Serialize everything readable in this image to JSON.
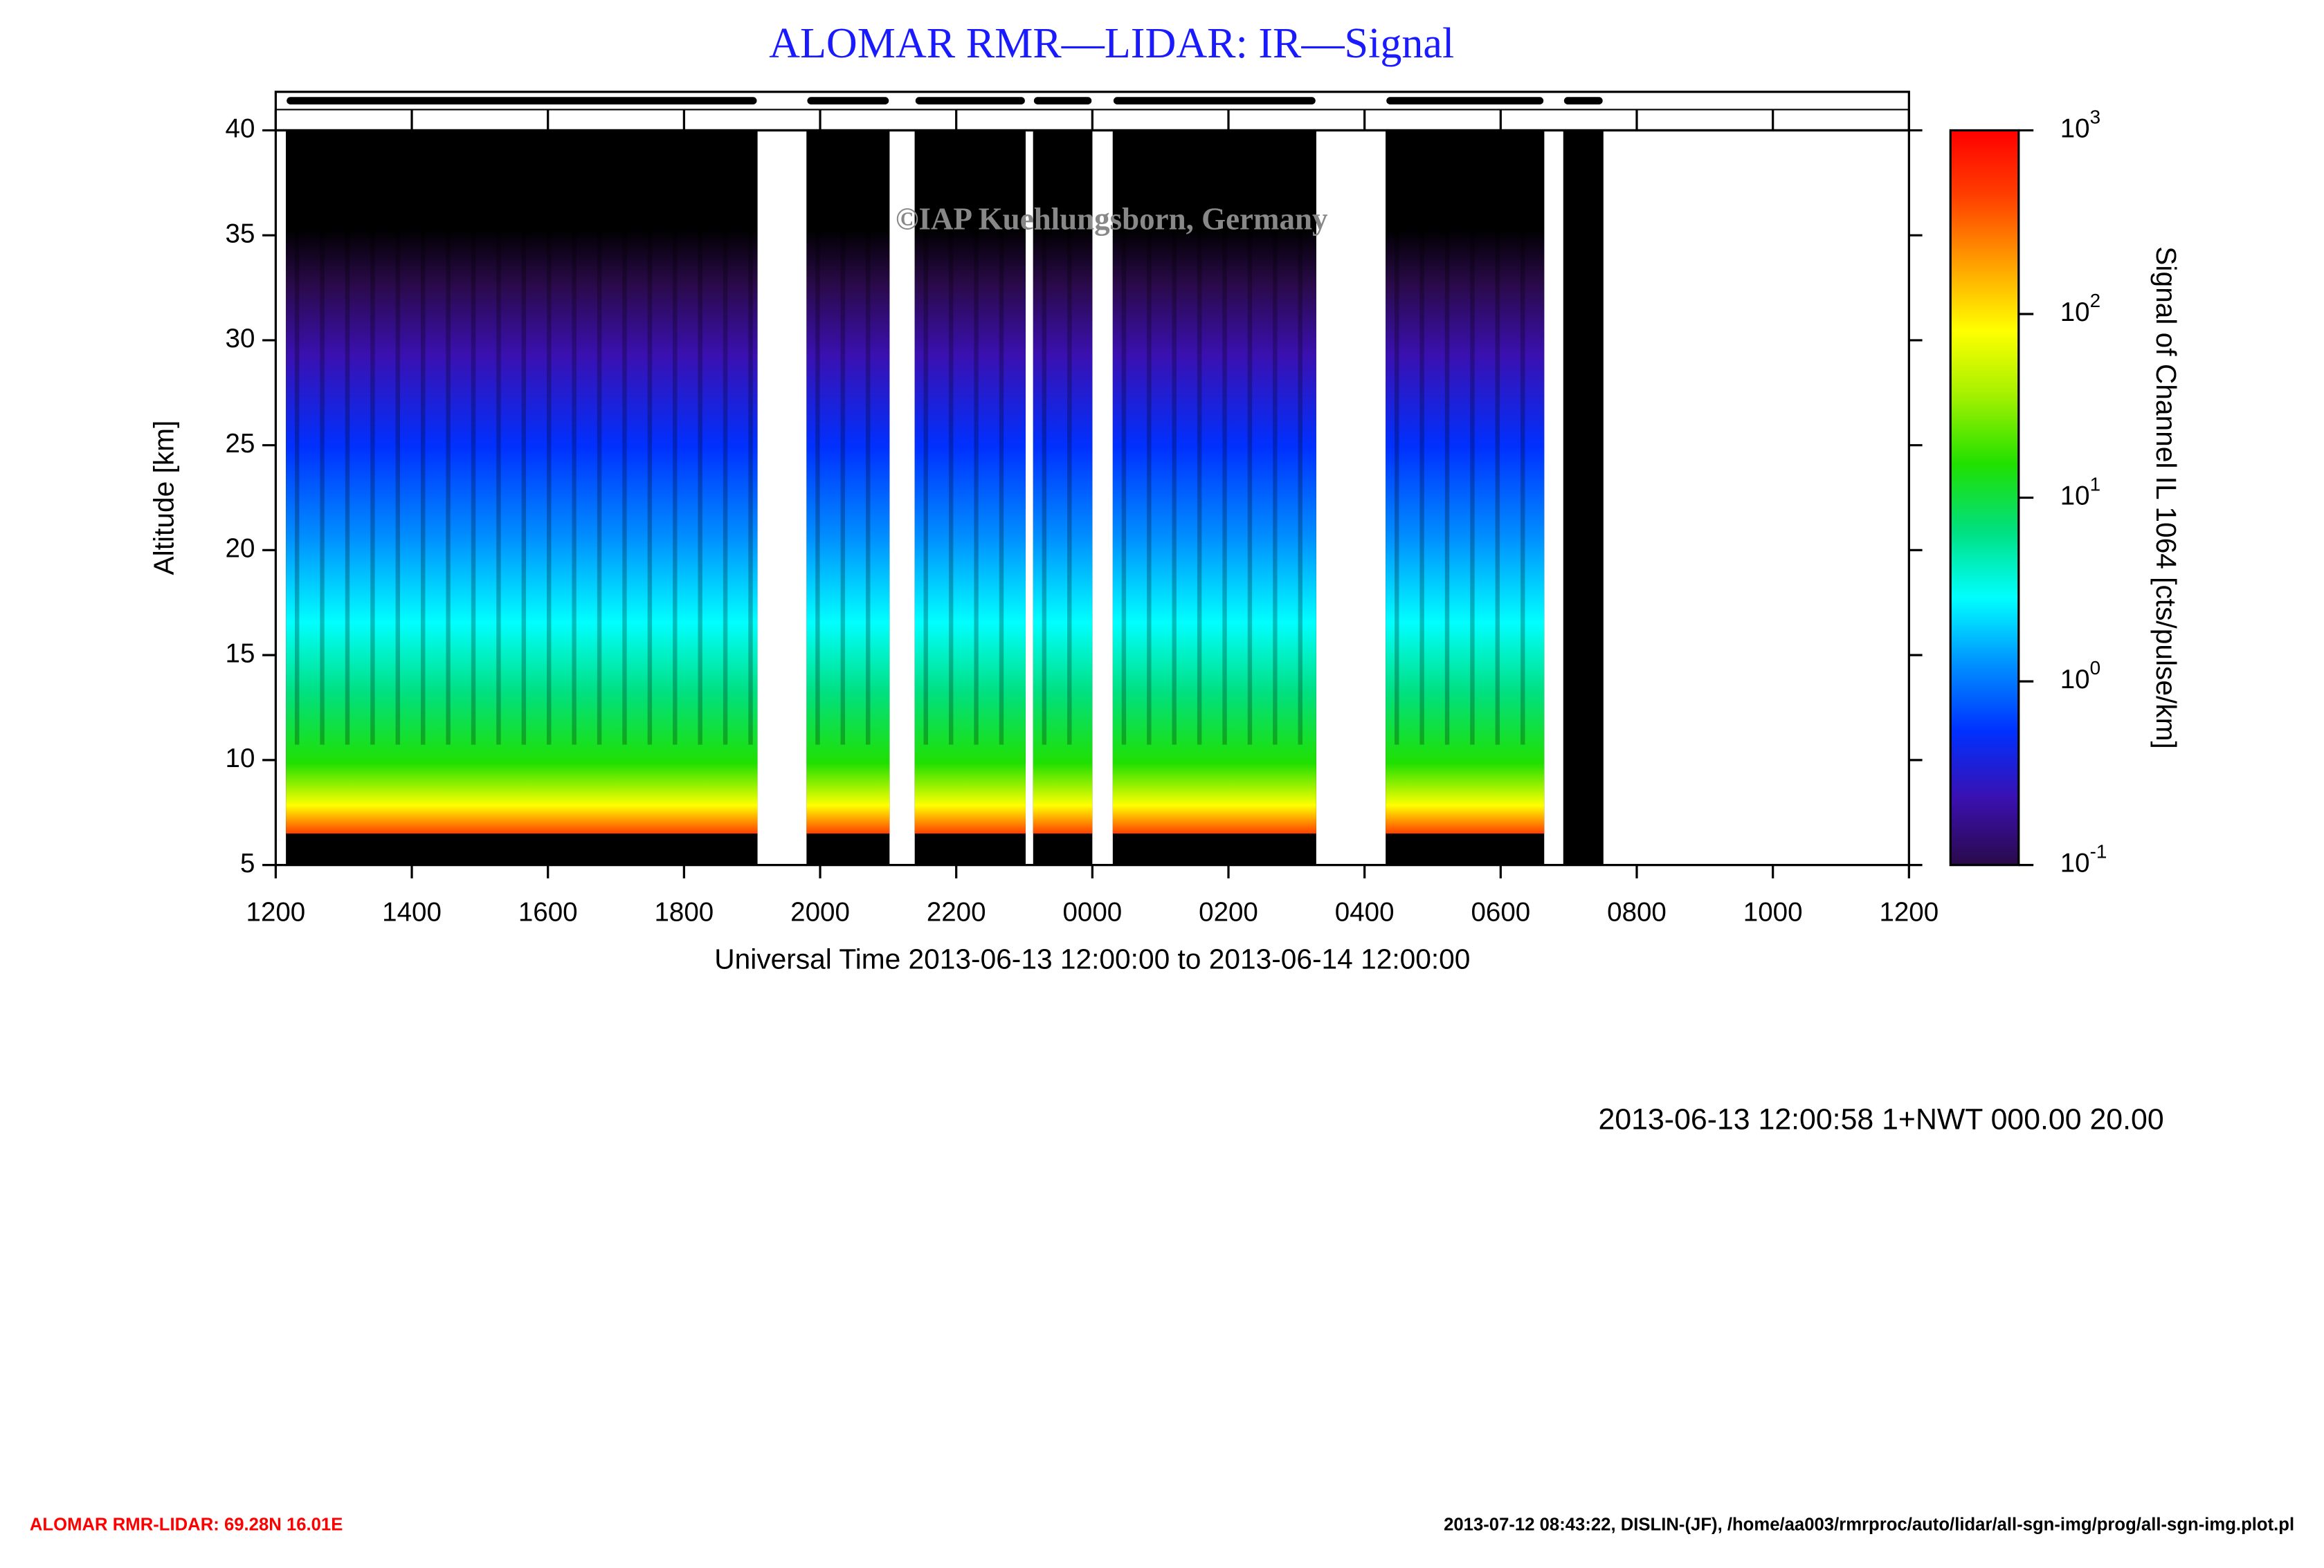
{
  "chart_data": {
    "type": "heatmap",
    "title": "ALOMAR RMR—LIDAR: IR—Signal",
    "watermark": "©IAP Kuehlungsborn, Germany",
    "ylabel": "Altitude [km]",
    "xlabel": "Universal Time 2013-06-13 12:00:00 to 2013-06-14 12:00:00",
    "colorbar_label": "Signal of Channel IL 1064 [cts/pulse/km]",
    "xlim": [
      0,
      24
    ],
    "xticks": [
      {
        "value": 0,
        "label": "1200"
      },
      {
        "value": 2,
        "label": "1400"
      },
      {
        "value": 4,
        "label": "1600"
      },
      {
        "value": 6,
        "label": "1800"
      },
      {
        "value": 8,
        "label": "2000"
      },
      {
        "value": 10,
        "label": "2200"
      },
      {
        "value": 12,
        "label": "0000"
      },
      {
        "value": 14,
        "label": "0200"
      },
      {
        "value": 16,
        "label": "0400"
      },
      {
        "value": 18,
        "label": "0600"
      },
      {
        "value": 20,
        "label": "0800"
      },
      {
        "value": 22,
        "label": "1000"
      },
      {
        "value": 24,
        "label": "1200"
      }
    ],
    "ylim": [
      5,
      40
    ],
    "yticks": [
      5,
      10,
      15,
      20,
      25,
      30,
      35,
      40
    ],
    "data_floor_km": 6.5,
    "periods": [
      {
        "start": 0.15,
        "end": 7.08,
        "signal": true
      },
      {
        "start": 7.8,
        "end": 9.02,
        "signal": true
      },
      {
        "start": 9.39,
        "end": 11.02,
        "signal": true
      },
      {
        "start": 11.13,
        "end": 12.0,
        "signal": true
      },
      {
        "start": 12.3,
        "end": 15.29,
        "signal": true
      },
      {
        "start": 16.31,
        "end": 18.64,
        "signal": true
      },
      {
        "start": 18.92,
        "end": 19.51,
        "signal": false
      }
    ],
    "colorbar": {
      "log": true,
      "clim": [
        0.1,
        1000
      ],
      "ticks": [
        {
          "value": 0.1,
          "label": "10",
          "exponent": "-1"
        },
        {
          "value": 1,
          "label": "10",
          "exponent": "0"
        },
        {
          "value": 10,
          "label": "10",
          "exponent": "1"
        },
        {
          "value": 100,
          "label": "10",
          "exponent": "2"
        },
        {
          "value": 1000,
          "label": "10",
          "exponent": "3"
        }
      ],
      "colormap": [
        "#2a0a4a",
        "#3a10b0",
        "#0030ff",
        "#0090ff",
        "#00ffff",
        "#00e080",
        "#20e000",
        "#a0f000",
        "#ffff00",
        "#ffa000",
        "#ff4000",
        "#ff0000"
      ]
    },
    "info": "2013-06-13 12:00:58 1+NWT 000.00 20.00",
    "footer_left": "ALOMAR RMR-LIDAR: 69.28N 16.01E",
    "footer_right": "2013-07-12 08:43:22, DISLIN-(JF), /home/aa003/rmrproc/auto/lidar/all-sgn-img/prog/all-sgn-img.plot.pl"
  }
}
